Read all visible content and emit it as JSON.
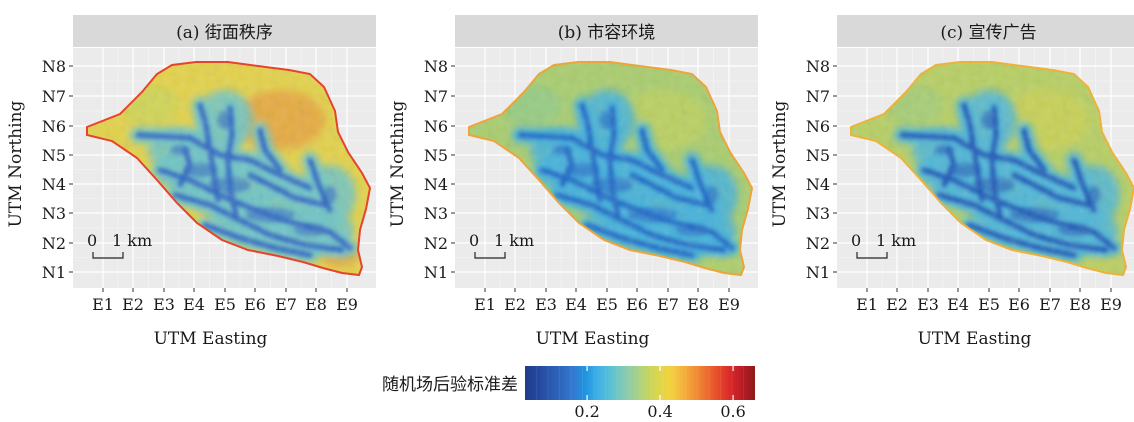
{
  "chart_data": {
    "type": "heatmap",
    "panels": [
      {
        "title": "(a) 街面秩序",
        "scheme": "a"
      },
      {
        "title": "(b) 市容环境",
        "scheme": "b"
      },
      {
        "title": "(c) 宣传广告",
        "scheme": "c"
      }
    ],
    "xlabel": "UTM Easting",
    "ylabel": "UTM Northing",
    "x_ticks": [
      "E1",
      "E2",
      "E3",
      "E4",
      "E5",
      "E6",
      "E7",
      "E8",
      "E9"
    ],
    "y_ticks": [
      "N1",
      "N2",
      "N3",
      "N4",
      "N5",
      "N6",
      "N7",
      "N8"
    ],
    "scale_bar": {
      "zero": "0",
      "label": "1 km"
    },
    "legend": {
      "title": "随机场后验标准差",
      "ticks": [
        "0.2",
        "0.4",
        "0.6"
      ],
      "tick_values": [
        0.2,
        0.4,
        0.6
      ],
      "range": [
        0.03,
        0.66
      ],
      "colors": [
        "#1f3b8e",
        "#23479d",
        "#2a57ad",
        "#2e67bd",
        "#337ad0",
        "#1f95e0",
        "#3fb0e6",
        "#58c1d6",
        "#7dc8b8",
        "#9dcf96",
        "#bfd46a",
        "#dcd64c",
        "#f3d23f",
        "#f5b43d",
        "#f19137",
        "#ec6e30",
        "#e54a2b",
        "#d8272a",
        "#b71c25",
        "#8b1a1a"
      ],
      "position": "bottom-center"
    },
    "grid": true,
    "panel_background": "#ebebeb",
    "strip_background": "#d9d9d9"
  }
}
